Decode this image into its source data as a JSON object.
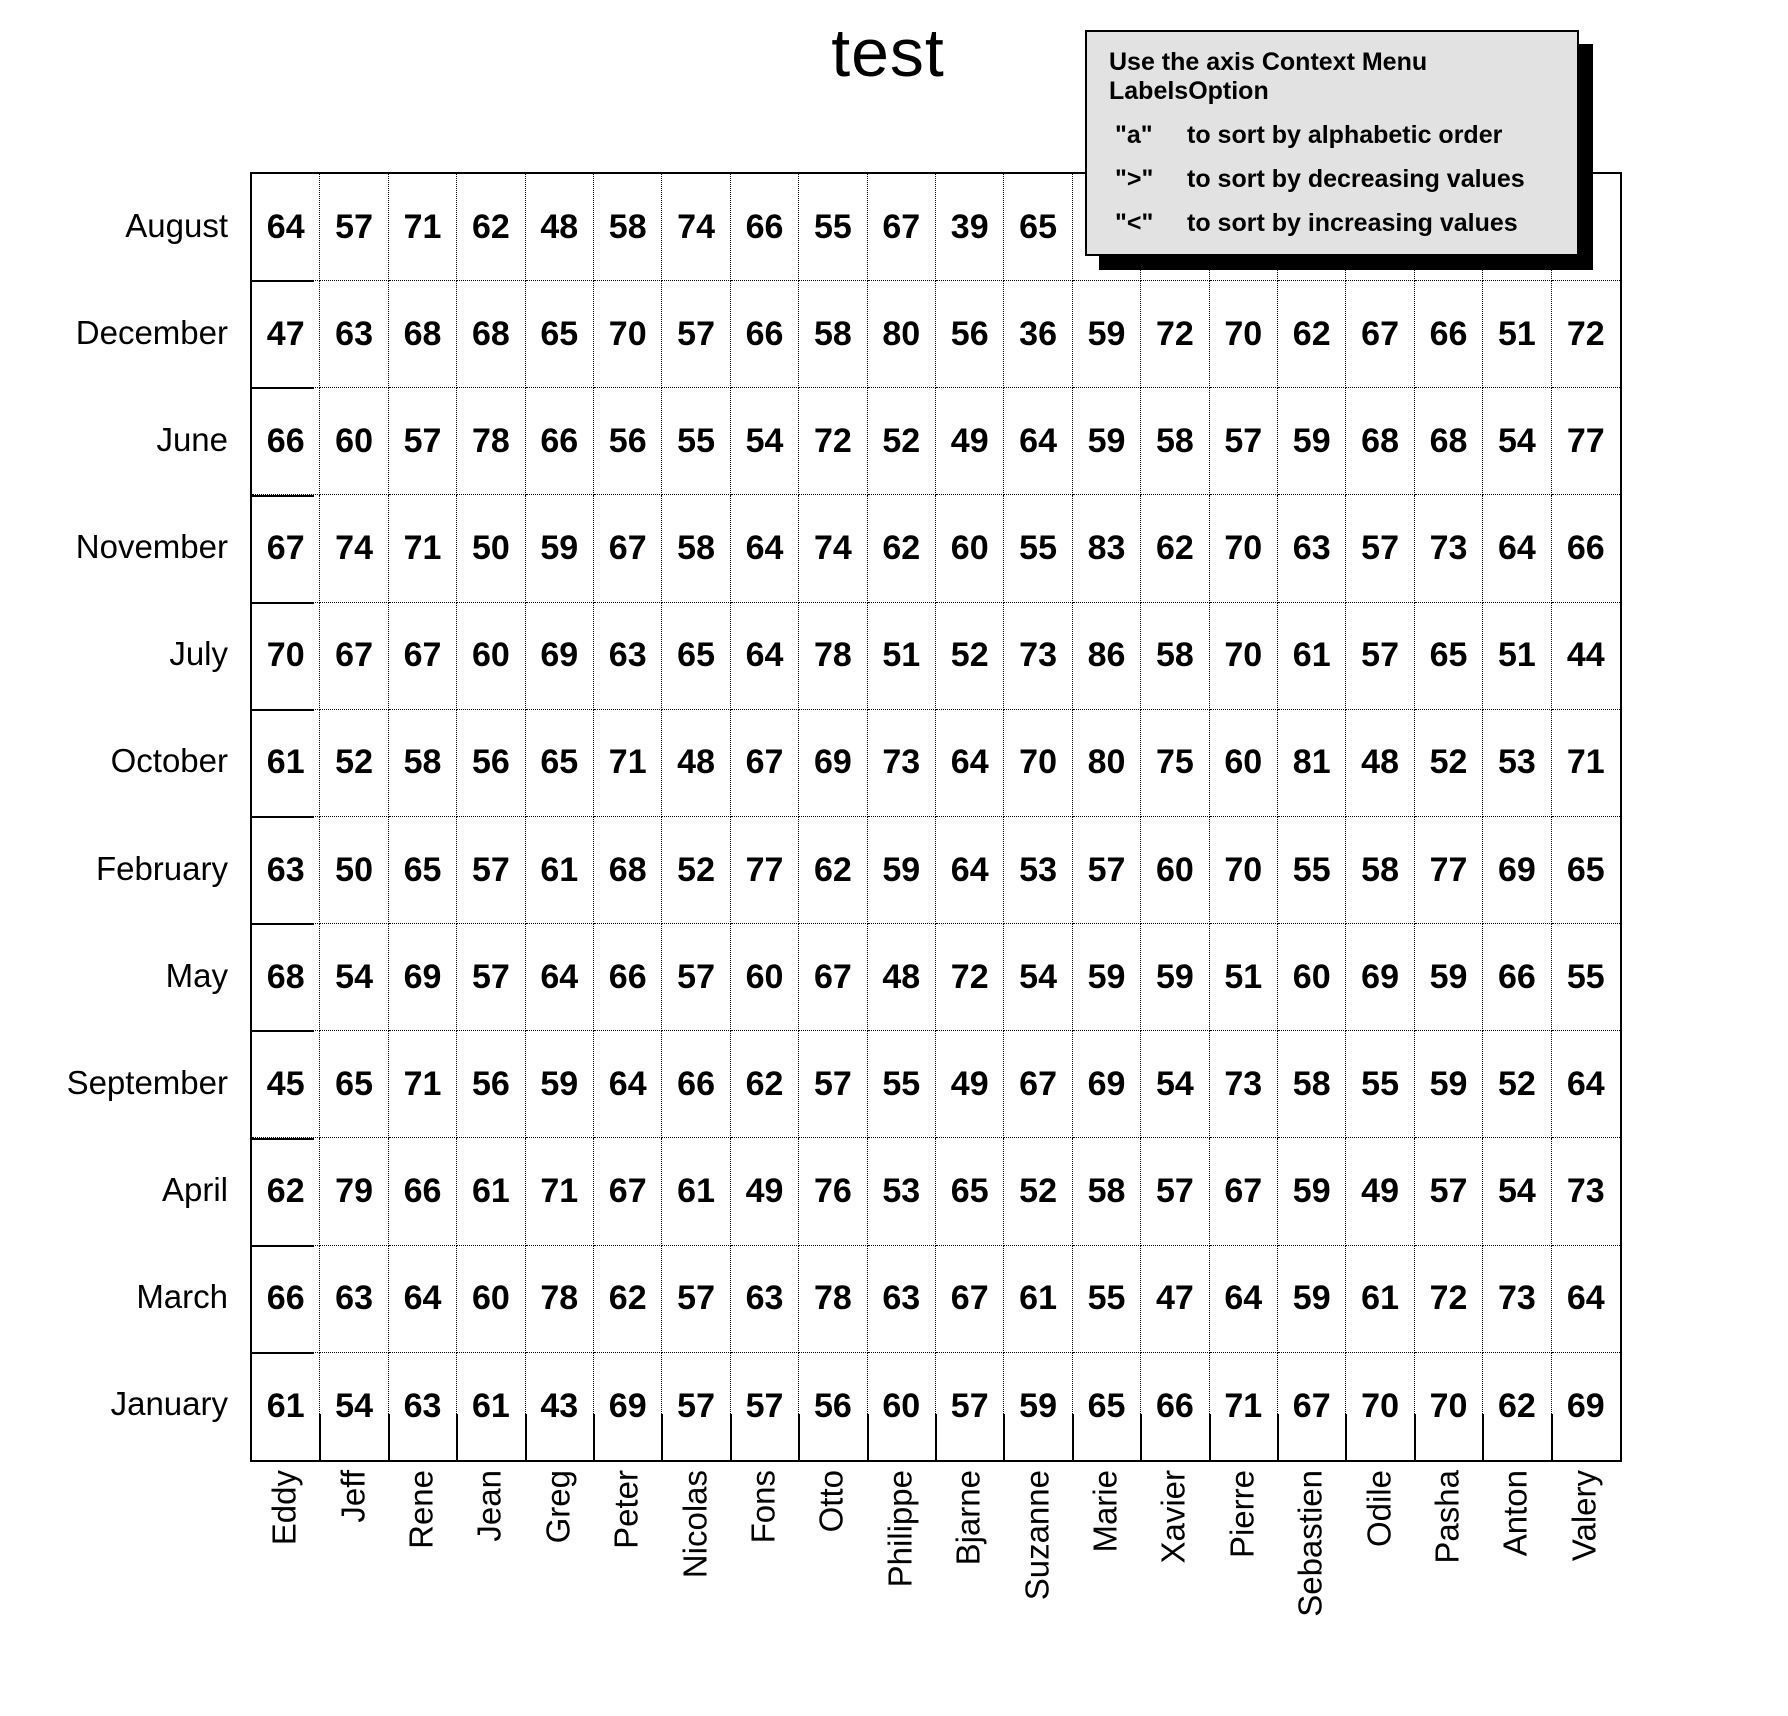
{
  "title": "test",
  "info_box": {
    "heading": "Use the axis Context Menu LabelsOption",
    "options": [
      {
        "key": "\"a\"",
        "text": "to sort by alphabetic order"
      },
      {
        "key": "\">\"",
        "text": "to sort by decreasing values"
      },
      {
        "key": "\"<\"",
        "text": "to sort by increasing values"
      }
    ]
  },
  "colors": {
    "background": "#ffffff",
    "text": "#000000",
    "overlay_background": "#e2e2e2",
    "overlay_border": "#000000",
    "overlay_shadow": "#000000"
  },
  "chart_data": {
    "type": "heatmap",
    "title": "test",
    "grid": "dotted",
    "columns": [
      "Eddy",
      "Jeff",
      "Rene",
      "Jean",
      "Greg",
      "Peter",
      "Nicolas",
      "Fons",
      "Otto",
      "Philippe",
      "Bjarne",
      "Suzanne",
      "Marie",
      "Xavier",
      "Pierre",
      "Sebastien",
      "Odile",
      "Pasha",
      "Anton",
      "Valery"
    ],
    "rows": [
      "August",
      "December",
      "June",
      "November",
      "July",
      "October",
      "February",
      "May",
      "September",
      "April",
      "March",
      "January"
    ],
    "values": [
      [
        64,
        57,
        71,
        62,
        48,
        58,
        74,
        66,
        55,
        67,
        39,
        65,
        null,
        null,
        null,
        null,
        null,
        null,
        null,
        null
      ],
      [
        47,
        63,
        68,
        68,
        65,
        70,
        57,
        66,
        58,
        80,
        56,
        36,
        59,
        72,
        70,
        62,
        67,
        66,
        51,
        72
      ],
      [
        66,
        60,
        57,
        78,
        66,
        56,
        55,
        54,
        72,
        52,
        49,
        64,
        59,
        58,
        57,
        59,
        68,
        68,
        54,
        77
      ],
      [
        67,
        74,
        71,
        50,
        59,
        67,
        58,
        64,
        74,
        62,
        60,
        55,
        83,
        62,
        70,
        63,
        57,
        73,
        64,
        66
      ],
      [
        70,
        67,
        67,
        60,
        69,
        63,
        65,
        64,
        78,
        51,
        52,
        73,
        86,
        58,
        70,
        61,
        57,
        65,
        51,
        44
      ],
      [
        61,
        52,
        58,
        56,
        65,
        71,
        48,
        67,
        69,
        73,
        64,
        70,
        80,
        75,
        60,
        81,
        48,
        52,
        53,
        71
      ],
      [
        63,
        50,
        65,
        57,
        61,
        68,
        52,
        77,
        62,
        59,
        64,
        53,
        57,
        60,
        70,
        55,
        58,
        77,
        69,
        65
      ],
      [
        68,
        54,
        69,
        57,
        64,
        66,
        57,
        60,
        67,
        48,
        72,
        54,
        59,
        59,
        51,
        60,
        69,
        59,
        66,
        55
      ],
      [
        45,
        65,
        71,
        56,
        59,
        64,
        66,
        62,
        57,
        55,
        49,
        67,
        69,
        54,
        73,
        58,
        55,
        59,
        52,
        64
      ],
      [
        62,
        79,
        66,
        61,
        71,
        67,
        61,
        49,
        76,
        53,
        65,
        52,
        58,
        57,
        67,
        59,
        49,
        57,
        54,
        73
      ],
      [
        66,
        63,
        64,
        60,
        78,
        62,
        57,
        63,
        78,
        63,
        67,
        61,
        55,
        47,
        64,
        59,
        61,
        72,
        73,
        64
      ],
      [
        61,
        54,
        63,
        61,
        43,
        69,
        57,
        57,
        56,
        60,
        57,
        59,
        65,
        66,
        71,
        67,
        70,
        70,
        62,
        69
      ]
    ]
  }
}
